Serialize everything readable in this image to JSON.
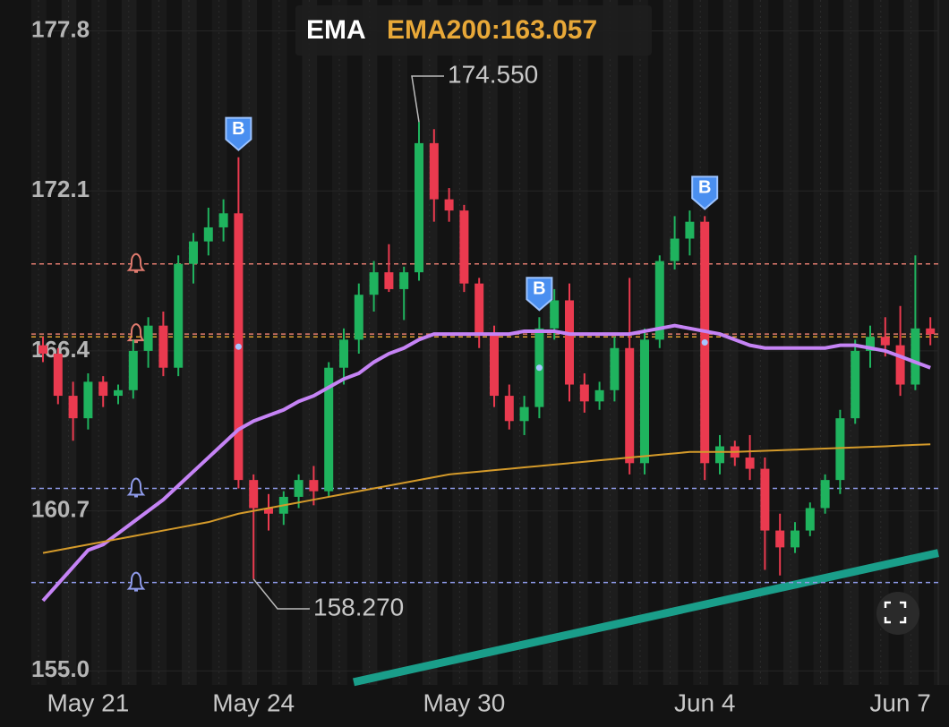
{
  "chart_data": {
    "type": "candlestick",
    "indicator": "EMA",
    "ema_legend": "EMA200:163.057",
    "ema_legend_color": "#e8a838",
    "categories": [
      null,
      null,
      null,
      "May 21",
      null,
      null,
      null,
      null,
      null,
      null,
      null,
      null,
      null,
      null,
      "May 24",
      null,
      null,
      null,
      null,
      null,
      null,
      null,
      null,
      null,
      null,
      null,
      null,
      null,
      "May 30",
      null,
      null,
      null,
      null,
      null,
      null,
      null,
      null,
      null,
      null,
      null,
      null,
      null,
      null,
      null,
      "Jun 4",
      null,
      null,
      null,
      null,
      null,
      null,
      null,
      null,
      null,
      null,
      null,
      null,
      "Jun 7",
      null,
      null
    ],
    "open": [
      166.6,
      166.3,
      164.8,
      164.0,
      165.3,
      164.8,
      165.0,
      166.4,
      167.3,
      165.8,
      169.5,
      170.3,
      170.8,
      171.3,
      161.8,
      160.8,
      160.6,
      161.2,
      161.8,
      161.4,
      165.8,
      166.8,
      168.4,
      169.2,
      168.6,
      169.2,
      173.8,
      171.8,
      171.4,
      168.8,
      167.0,
      164.8,
      163.9,
      164.4,
      167.2,
      168.2,
      165.2,
      164.6,
      165.0,
      166.5,
      162.4,
      166.8,
      169.6,
      170.4,
      171.0,
      162.4,
      163.0,
      162.6,
      162.2,
      160.0,
      159.4,
      160.0,
      160.8,
      161.8,
      164.0,
      166.4,
      166.9,
      166.6,
      165.2,
      167.2
    ],
    "high": [
      166.9,
      166.5,
      165.3,
      165.6,
      165.5,
      165.2,
      166.8,
      167.6,
      167.8,
      169.8,
      170.6,
      171.5,
      171.8,
      173.3,
      162.0,
      161.3,
      161.4,
      162.0,
      162.3,
      166.0,
      167.2,
      168.8,
      169.6,
      170.2,
      169.4,
      174.55,
      174.3,
      172.2,
      171.6,
      169.0,
      167.3,
      165.2,
      164.8,
      167.6,
      168.6,
      168.8,
      165.6,
      165.3,
      166.9,
      169.0,
      167.2,
      169.8,
      171.2,
      171.4,
      171.2,
      163.4,
      163.2,
      163.4,
      162.6,
      160.6,
      160.3,
      161.0,
      162.0,
      164.3,
      166.8,
      167.3,
      167.6,
      168.0,
      169.8,
      167.6
    ],
    "low": [
      166.0,
      164.5,
      163.2,
      163.6,
      164.4,
      164.5,
      164.7,
      165.8,
      165.5,
      165.5,
      168.8,
      169.8,
      170.3,
      161.5,
      158.27,
      160.0,
      160.2,
      160.8,
      160.9,
      161.2,
      165.2,
      166.3,
      167.8,
      168.5,
      167.5,
      168.9,
      171.0,
      171.0,
      168.5,
      166.5,
      164.4,
      163.6,
      163.4,
      164.0,
      166.8,
      164.6,
      164.2,
      164.3,
      164.6,
      162.0,
      162.0,
      166.5,
      169.3,
      169.8,
      161.8,
      162.0,
      162.3,
      161.8,
      158.6,
      158.4,
      159.2,
      159.8,
      160.6,
      161.3,
      163.8,
      165.8,
      166.2,
      164.8,
      165.0,
      166.6
    ],
    "close": [
      166.3,
      164.8,
      164.0,
      165.3,
      164.8,
      165.0,
      166.4,
      167.3,
      165.8,
      169.5,
      170.3,
      170.8,
      171.3,
      161.8,
      160.8,
      160.6,
      161.2,
      161.8,
      161.4,
      165.8,
      166.8,
      168.4,
      169.2,
      168.6,
      169.2,
      173.8,
      171.8,
      171.4,
      168.8,
      167.0,
      164.8,
      163.9,
      164.4,
      167.2,
      168.2,
      165.2,
      164.6,
      165.0,
      166.5,
      162.4,
      166.8,
      169.6,
      170.4,
      171.0,
      162.4,
      163.0,
      162.6,
      162.2,
      160.0,
      159.4,
      160.0,
      160.8,
      161.8,
      164.0,
      166.4,
      166.9,
      166.6,
      165.2,
      167.2,
      167.0
    ],
    "up_color": "#1fb35e",
    "down_color": "#ea3a4f",
    "lines": [
      {
        "color": "#c583f5",
        "values": [
          157.5,
          158.1,
          158.7,
          159.3,
          159.5,
          159.9,
          160.3,
          160.7,
          161.1,
          161.6,
          162.1,
          162.6,
          163.1,
          163.6,
          163.9,
          164.1,
          164.3,
          164.6,
          164.8,
          165.1,
          165.4,
          165.6,
          166.0,
          166.3,
          166.5,
          166.8,
          167.0,
          167.0,
          167.0,
          167.0,
          167.0,
          167.0,
          167.1,
          167.1,
          167.1,
          167.0,
          167.0,
          167.0,
          167.0,
          167.0,
          167.1,
          167.2,
          167.3,
          167.2,
          167.1,
          167.0,
          166.8,
          166.6,
          166.5,
          166.5,
          166.5,
          166.5,
          166.5,
          166.6,
          166.6,
          166.5,
          166.4,
          166.2,
          166.0,
          165.8
        ]
      },
      {
        "color": "#d49a2a",
        "values": [
          159.2,
          159.3,
          159.4,
          159.5,
          159.6,
          159.7,
          159.8,
          159.9,
          160.0,
          160.1,
          160.2,
          160.3,
          160.45,
          160.6,
          160.7,
          160.8,
          160.9,
          161.0,
          161.1,
          161.2,
          161.3,
          161.4,
          161.5,
          161.6,
          161.7,
          161.8,
          161.9,
          162.0,
          162.05,
          162.1,
          162.15,
          162.2,
          162.25,
          162.3,
          162.35,
          162.4,
          162.45,
          162.5,
          162.55,
          162.6,
          162.65,
          162.7,
          162.75,
          162.8,
          162.8,
          162.8,
          162.8,
          162.82,
          162.84,
          162.86,
          162.88,
          162.9,
          162.92,
          162.94,
          162.96,
          162.98,
          163.0,
          163.03,
          163.05,
          163.07
        ]
      }
    ],
    "trendline": {
      "color": "#1a9e8a",
      "values": [
        154.6,
        159.2
      ]
    },
    "alerts": [
      {
        "value": 169.5,
        "color": "#e07a6e"
      },
      {
        "value": 167.0,
        "color": "#e07a6e"
      },
      {
        "value": 161.5,
        "color": "#8f9bea"
      },
      {
        "value": 158.15,
        "color": "#8f9bea"
      }
    ],
    "price_line": {
      "value": 166.9,
      "color": "#e0a030"
    },
    "extremes": [
      {
        "value": 174.55,
        "label": "174.550"
      },
      {
        "value": 158.27,
        "label": "158.270"
      }
    ],
    "markers": [
      "B",
      "B",
      "B"
    ],
    "ylim": [
      154.5,
      178.9
    ],
    "yticks": [
      177.8,
      172.1,
      166.4,
      160.7,
      {
        "value": 155,
        "label": "155.0"
      }
    ]
  }
}
